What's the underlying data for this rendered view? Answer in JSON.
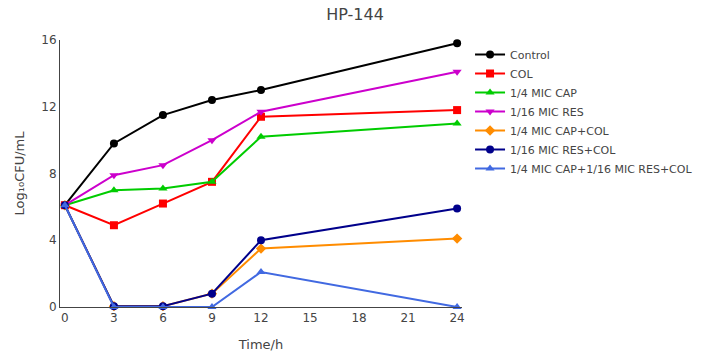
{
  "chart_data": {
    "type": "line",
    "title": "HP-144",
    "x_label": "Time/h",
    "y_label": "Log₁₀CFU/mL",
    "xlim": [
      -0.3,
      24.3
    ],
    "xticks": [
      0,
      3,
      6,
      9,
      12,
      15,
      18,
      21,
      24
    ],
    "ylim": [
      0,
      16
    ],
    "yticks": [
      0,
      4,
      8,
      12,
      16
    ],
    "grid": false,
    "legend": "right",
    "series": [
      {
        "name": "Control",
        "color": "#000000",
        "marker": "circle",
        "x": [
          0,
          3,
          6,
          9,
          12,
          24
        ],
        "values": [
          6.1,
          9.8,
          11.5,
          12.4,
          13.0,
          15.8
        ]
      },
      {
        "name": "COL",
        "color": "#FF0000",
        "marker": "square",
        "x": [
          0,
          3,
          6,
          9,
          12,
          24
        ],
        "values": [
          6.1,
          4.9,
          6.2,
          7.5,
          11.4,
          11.8
        ]
      },
      {
        "name": "1/4 MIC CAP",
        "color": "#00CC00",
        "marker": "triangle-up",
        "x": [
          0,
          3,
          6,
          9,
          12,
          24
        ],
        "values": [
          6.1,
          7.0,
          7.1,
          7.5,
          10.2,
          11.0
        ]
      },
      {
        "name": "1/16 MIC RES",
        "color": "#CC00CC",
        "marker": "triangle-down",
        "x": [
          0,
          3,
          6,
          9,
          12,
          24
        ],
        "values": [
          6.1,
          7.9,
          8.5,
          10.0,
          11.7,
          14.1
        ]
      },
      {
        "name": "1/4 MIC CAP+COL",
        "color": "#FF8C00",
        "marker": "diamond",
        "x": [
          0,
          3,
          6,
          9,
          12,
          24
        ],
        "values": [
          6.1,
          0.05,
          0.05,
          0.8,
          3.5,
          4.1
        ]
      },
      {
        "name": "1/16 MIC RES+COL",
        "color": "#00008B",
        "marker": "circle",
        "x": [
          0,
          3,
          6,
          9,
          12,
          24
        ],
        "values": [
          6.1,
          0.05,
          0.05,
          0.8,
          4.0,
          5.9
        ]
      },
      {
        "name": "1/4 MIC CAP+1/16 MIC RES+COL",
        "color": "#4169E1",
        "marker": "triangle-up",
        "x": [
          0,
          3,
          6,
          9,
          12,
          24
        ],
        "values": [
          6.1,
          0.0,
          0.0,
          0.0,
          2.1,
          0.0
        ]
      }
    ]
  }
}
